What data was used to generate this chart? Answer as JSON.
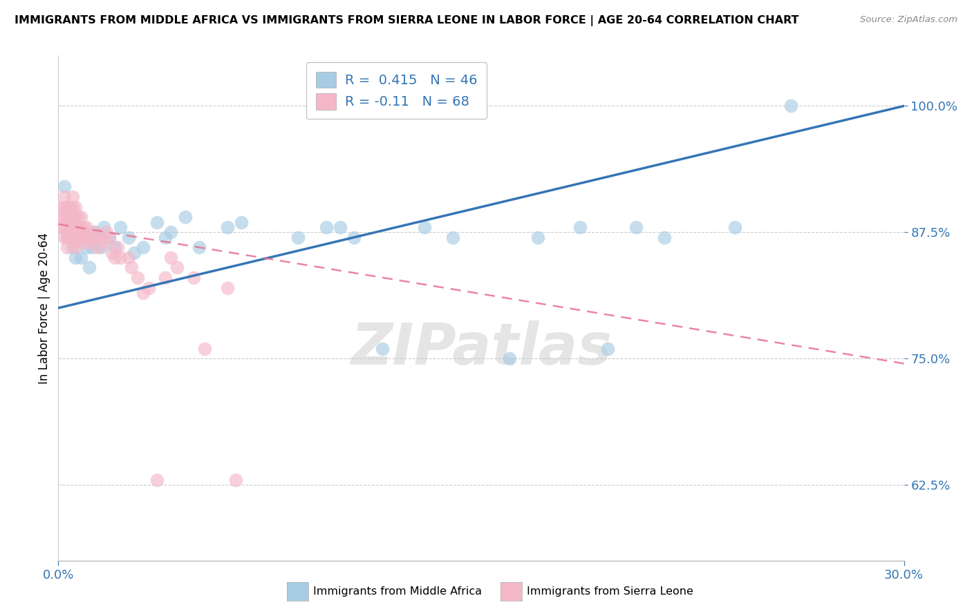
{
  "title": "IMMIGRANTS FROM MIDDLE AFRICA VS IMMIGRANTS FROM SIERRA LEONE IN LABOR FORCE | AGE 20-64 CORRELATION CHART",
  "source": "Source: ZipAtlas.com",
  "ylabel": "In Labor Force | Age 20-64",
  "xlim": [
    0.0,
    0.3
  ],
  "ylim": [
    0.55,
    1.05
  ],
  "yticks": [
    0.625,
    0.75,
    0.875,
    1.0
  ],
  "ytick_labels": [
    "62.5%",
    "75.0%",
    "87.5%",
    "100.0%"
  ],
  "xticks": [
    0.0,
    0.3
  ],
  "xtick_labels": [
    "0.0%",
    "30.0%"
  ],
  "blue_label": "Immigrants from Middle Africa",
  "pink_label": "Immigrants from Sierra Leone",
  "blue_R": 0.415,
  "blue_N": 46,
  "pink_R": -0.11,
  "pink_N": 68,
  "blue_color": "#a8cce4",
  "pink_color": "#f4b8c8",
  "blue_line_color": "#3575b5",
  "pink_line_color": "#e87090",
  "watermark": "ZIPatlas",
  "blue_trend_x0": 0.0,
  "blue_trend_y0": 0.8,
  "blue_trend_x1": 0.3,
  "blue_trend_y1": 1.0,
  "pink_trend_x0": 0.0,
  "pink_trend_y0": 0.883,
  "pink_trend_x1": 0.3,
  "pink_trend_y1": 0.745,
  "blue_x": [
    0.002,
    0.003,
    0.004,
    0.005,
    0.005,
    0.006,
    0.006,
    0.007,
    0.007,
    0.008,
    0.009,
    0.01,
    0.011,
    0.012,
    0.013,
    0.014,
    0.015,
    0.016,
    0.018,
    0.02,
    0.022,
    0.025,
    0.027,
    0.03,
    0.035,
    0.038,
    0.04,
    0.045,
    0.05,
    0.06,
    0.065,
    0.085,
    0.095,
    0.1,
    0.105,
    0.115,
    0.13,
    0.14,
    0.16,
    0.17,
    0.185,
    0.195,
    0.205,
    0.215,
    0.24,
    0.26
  ],
  "blue_y": [
    0.92,
    0.87,
    0.9,
    0.89,
    0.86,
    0.88,
    0.85,
    0.87,
    0.88,
    0.85,
    0.87,
    0.86,
    0.84,
    0.86,
    0.875,
    0.87,
    0.86,
    0.88,
    0.87,
    0.86,
    0.88,
    0.87,
    0.855,
    0.86,
    0.885,
    0.87,
    0.875,
    0.89,
    0.86,
    0.88,
    0.885,
    0.87,
    0.88,
    0.88,
    0.87,
    0.76,
    0.88,
    0.87,
    0.75,
    0.87,
    0.88,
    0.76,
    0.88,
    0.87,
    0.88,
    1.0
  ],
  "pink_x": [
    0.001,
    0.001,
    0.001,
    0.002,
    0.002,
    0.002,
    0.002,
    0.002,
    0.003,
    0.003,
    0.003,
    0.003,
    0.003,
    0.003,
    0.004,
    0.004,
    0.004,
    0.004,
    0.005,
    0.005,
    0.005,
    0.005,
    0.005,
    0.005,
    0.006,
    0.006,
    0.006,
    0.006,
    0.006,
    0.006,
    0.006,
    0.007,
    0.007,
    0.007,
    0.007,
    0.008,
    0.008,
    0.008,
    0.009,
    0.009,
    0.009,
    0.01,
    0.01,
    0.011,
    0.012,
    0.013,
    0.014,
    0.015,
    0.016,
    0.017,
    0.018,
    0.019,
    0.02,
    0.021,
    0.022,
    0.025,
    0.026,
    0.028,
    0.03,
    0.032,
    0.035,
    0.038,
    0.04,
    0.042,
    0.048,
    0.052,
    0.06,
    0.063
  ],
  "pink_y": [
    0.9,
    0.89,
    0.88,
    0.91,
    0.9,
    0.89,
    0.88,
    0.87,
    0.9,
    0.89,
    0.885,
    0.875,
    0.87,
    0.86,
    0.9,
    0.89,
    0.88,
    0.87,
    0.91,
    0.9,
    0.89,
    0.88,
    0.875,
    0.865,
    0.9,
    0.89,
    0.88,
    0.875,
    0.87,
    0.865,
    0.86,
    0.89,
    0.88,
    0.875,
    0.87,
    0.89,
    0.88,
    0.87,
    0.88,
    0.875,
    0.865,
    0.88,
    0.87,
    0.865,
    0.87,
    0.875,
    0.86,
    0.87,
    0.865,
    0.875,
    0.87,
    0.855,
    0.85,
    0.86,
    0.85,
    0.85,
    0.84,
    0.83,
    0.815,
    0.82,
    0.63,
    0.83,
    0.85,
    0.84,
    0.83,
    0.76,
    0.82,
    0.63
  ]
}
